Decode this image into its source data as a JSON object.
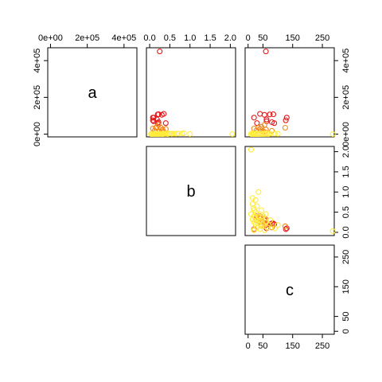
{
  "chart_data": {
    "type": "scatter",
    "subtype": "pairs-upper",
    "variables": [
      "a",
      "b",
      "c"
    ],
    "colors": {
      "red": "#e31a1c",
      "orange": "#f2871a",
      "yellow": "#ffeb3b"
    },
    "axes": {
      "a": {
        "range": [
          -15000,
          470000
        ],
        "ticks": [
          0,
          200000,
          400000
        ],
        "tick_labels": [
          "0e+00",
          "2e+05",
          "4e+05"
        ]
      },
      "b": {
        "range": [
          -0.08,
          2.13
        ],
        "ticks": [
          0,
          0.5,
          1.0,
          1.5,
          2.0
        ],
        "tick_labels": [
          "0.0",
          "0.5",
          "1.0",
          "1.5",
          "2.0"
        ]
      },
      "c": {
        "range": [
          -10,
          290
        ],
        "ticks": [
          0,
          50,
          150,
          250
        ],
        "tick_labels": [
          "0",
          "50",
          "150",
          "250"
        ]
      }
    },
    "points": [
      {
        "b": 0.25,
        "c": 60,
        "a": 450000,
        "color": "red"
      },
      {
        "b": 0.35,
        "c": 40,
        "a": 110000,
        "color": "red"
      },
      {
        "b": 0.3,
        "c": 55,
        "a": 105000,
        "color": "red"
      },
      {
        "b": 0.22,
        "c": 85,
        "a": 108000,
        "color": "red"
      },
      {
        "b": 0.2,
        "c": 73,
        "a": 107000,
        "color": "red"
      },
      {
        "b": 0.08,
        "c": 20,
        "a": 90000,
        "color": "red"
      },
      {
        "b": 0.18,
        "c": 62,
        "a": 80000,
        "color": "red"
      },
      {
        "b": 0.1,
        "c": 62,
        "a": 70000,
        "color": "red"
      },
      {
        "b": 0.22,
        "c": 80,
        "a": 65000,
        "color": "red"
      },
      {
        "b": 0.1,
        "c": 130,
        "a": 90000,
        "color": "red"
      },
      {
        "b": 0.08,
        "c": 127,
        "a": 75000,
        "color": "red"
      },
      {
        "b": 0.4,
        "c": 30,
        "a": 60000,
        "color": "red"
      },
      {
        "b": 0.2,
        "c": 88,
        "a": 60000,
        "color": "red"
      },
      {
        "b": 0.22,
        "c": 55,
        "a": 50000,
        "color": "orange"
      },
      {
        "b": 0.18,
        "c": 45,
        "a": 40000,
        "color": "orange"
      },
      {
        "b": 0.28,
        "c": 35,
        "a": 35000,
        "color": "orange"
      },
      {
        "b": 0.32,
        "c": 60,
        "a": 25000,
        "color": "orange"
      },
      {
        "b": 0.15,
        "c": 125,
        "a": 35000,
        "color": "orange"
      },
      {
        "b": 0.4,
        "c": 40,
        "a": 28000,
        "color": "orange"
      },
      {
        "b": 0.3,
        "c": 28,
        "a": 20000,
        "color": "orange"
      },
      {
        "b": 0.25,
        "c": 50,
        "a": 15000,
        "color": "orange"
      },
      {
        "b": 0.12,
        "c": 80,
        "a": 18000,
        "color": "orange"
      },
      {
        "b": 0.08,
        "c": 20,
        "a": 30000,
        "color": "orange"
      },
      {
        "b": 0.35,
        "c": 55,
        "a": 12000,
        "color": "orange"
      },
      {
        "b": 2.05,
        "c": 10,
        "a": 0,
        "color": "yellow"
      },
      {
        "b": 0.85,
        "c": 15,
        "a": 5000,
        "color": "yellow"
      },
      {
        "b": 0.7,
        "c": 15,
        "a": 3000,
        "color": "yellow"
      },
      {
        "b": 0.6,
        "c": 18,
        "a": 2000,
        "color": "yellow"
      },
      {
        "b": 0.55,
        "c": 20,
        "a": 1000,
        "color": "yellow"
      },
      {
        "b": 0.5,
        "c": 25,
        "a": 2000,
        "color": "yellow"
      },
      {
        "b": 0.45,
        "c": 10,
        "a": 0,
        "color": "yellow"
      },
      {
        "b": 0.45,
        "c": 30,
        "a": 1500,
        "color": "yellow"
      },
      {
        "b": 0.4,
        "c": 20,
        "a": 1000,
        "color": "yellow"
      },
      {
        "b": 0.4,
        "c": 50,
        "a": 3000,
        "color": "yellow"
      },
      {
        "b": 0.38,
        "c": 35,
        "a": 2500,
        "color": "yellow"
      },
      {
        "b": 0.35,
        "c": 25,
        "a": 800,
        "color": "yellow"
      },
      {
        "b": 0.35,
        "c": 45,
        "a": 1500,
        "color": "yellow"
      },
      {
        "b": 0.32,
        "c": 15,
        "a": 600,
        "color": "yellow"
      },
      {
        "b": 0.3,
        "c": 30,
        "a": 500,
        "color": "yellow"
      },
      {
        "b": 0.28,
        "c": 40,
        "a": 1200,
        "color": "yellow"
      },
      {
        "b": 0.25,
        "c": 20,
        "a": 400,
        "color": "yellow"
      },
      {
        "b": 0.25,
        "c": 60,
        "a": 1000,
        "color": "yellow"
      },
      {
        "b": 0.22,
        "c": 35,
        "a": 900,
        "color": "yellow"
      },
      {
        "b": 0.2,
        "c": 25,
        "a": 300,
        "color": "yellow"
      },
      {
        "b": 0.2,
        "c": 50,
        "a": 700,
        "color": "yellow"
      },
      {
        "b": 0.18,
        "c": 70,
        "a": 500,
        "color": "yellow"
      },
      {
        "b": 0.15,
        "c": 45,
        "a": 400,
        "color": "yellow"
      },
      {
        "b": 0.12,
        "c": 30,
        "a": 200,
        "color": "yellow"
      },
      {
        "b": 0.12,
        "c": 65,
        "a": 800,
        "color": "yellow"
      },
      {
        "b": 0.1,
        "c": 90,
        "a": 2000,
        "color": "yellow"
      },
      {
        "b": 0.08,
        "c": 40,
        "a": 100,
        "color": "yellow"
      },
      {
        "b": 0.05,
        "c": 55,
        "a": 300,
        "color": "yellow"
      },
      {
        "b": 0.05,
        "c": 20,
        "a": 100,
        "color": "yellow"
      },
      {
        "b": 0.45,
        "c": 60,
        "a": 4000,
        "color": "yellow"
      },
      {
        "b": 0.3,
        "c": 75,
        "a": 2500,
        "color": "yellow"
      },
      {
        "b": 0.18,
        "c": 100,
        "a": 1500,
        "color": "yellow"
      },
      {
        "b": 0.55,
        "c": 45,
        "a": 2500,
        "color": "yellow"
      },
      {
        "b": 0.65,
        "c": 30,
        "a": 1500,
        "color": "yellow"
      },
      {
        "b": 0.8,
        "c": 25,
        "a": 3000,
        "color": "yellow"
      },
      {
        "b": 1.0,
        "c": 35,
        "a": 500,
        "color": "yellow"
      },
      {
        "b": 0.03,
        "c": 285,
        "a": 0,
        "color": "yellow"
      }
    ]
  }
}
